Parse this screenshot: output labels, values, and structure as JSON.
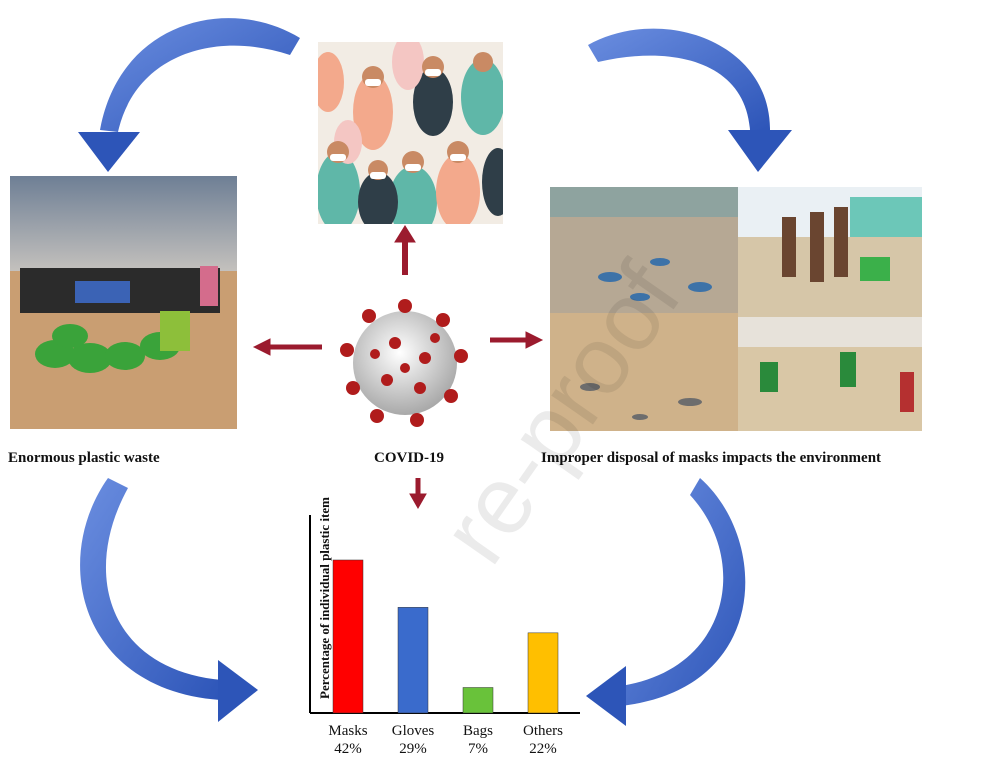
{
  "captions": {
    "left": "Enormous plastic waste",
    "center": "COVID-19",
    "right": "Improper disposal of masks impacts the environment"
  },
  "photos": {
    "crowd": "masked-crowd-illustration",
    "cleanup": "beach-cleanup-volunteers-photo",
    "beach_waste": "beach-plastic-waste-photo",
    "virus": "coronavirus-illustration"
  },
  "watermark": "re-proof",
  "colors": {
    "arrow_blue": "#3a62c4",
    "arrow_red": "#9b1b2e",
    "bar_masks": "#ff0000",
    "bar_gloves": "#3a6bcc",
    "bar_bags": "#69c23a",
    "bar_others": "#ffbf00"
  },
  "chart_data": {
    "type": "bar",
    "ylabel": "Percentage  of individual plastic item",
    "categories": [
      "Masks",
      "Gloves",
      "Bags",
      "Others"
    ],
    "category_labels": [
      "Masks\n42%",
      "Gloves\n29%",
      "Bags\n7%",
      "Others\n22%"
    ],
    "values": [
      42,
      29,
      7,
      22
    ],
    "colors": [
      "#ff0000",
      "#3a6bcc",
      "#69c23a",
      "#ffbf00"
    ],
    "ylim": [
      0,
      50
    ],
    "grid": false
  }
}
